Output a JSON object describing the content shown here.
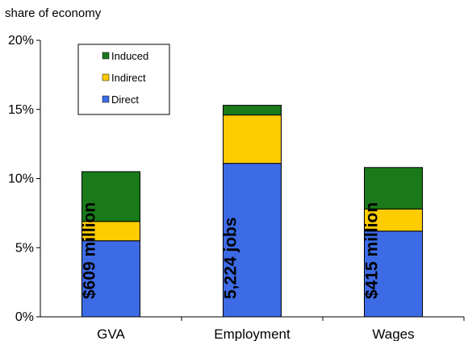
{
  "chart_data": {
    "type": "bar",
    "stacked": true,
    "title": "",
    "ylabel": "share of economy",
    "xlabel": "",
    "ylim": [
      0,
      20
    ],
    "yticks": [
      "0%",
      "5%",
      "10%",
      "15%",
      "20%"
    ],
    "categories": [
      "GVA",
      "Employment",
      "Wages"
    ],
    "series": [
      {
        "name": "Direct",
        "color": "#3D6BE6",
        "values": [
          5.5,
          11.1,
          6.2
        ]
      },
      {
        "name": "Indirect",
        "color": "#FFCC00",
        "values": [
          1.4,
          3.5,
          1.6
        ]
      },
      {
        "name": "Induced",
        "color": "#1A7A1A",
        "values": [
          3.6,
          0.7,
          3.0
        ]
      }
    ],
    "bar_annotations": [
      "$609 million",
      "5,224 jobs",
      "$415 million"
    ],
    "legend": {
      "position": "top-left",
      "order": [
        "Induced",
        "Indirect",
        "Direct"
      ]
    },
    "grid": false
  }
}
